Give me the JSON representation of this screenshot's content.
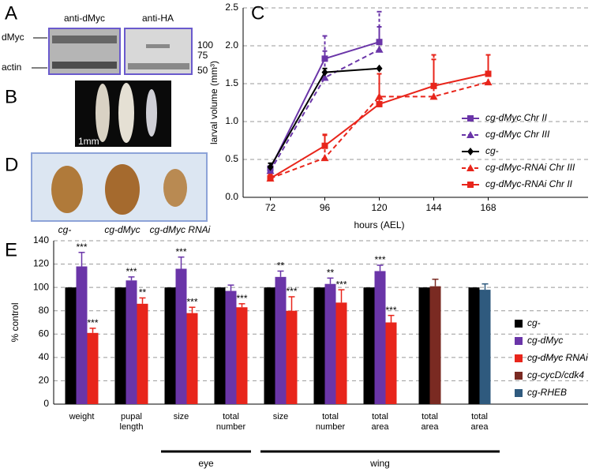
{
  "panels": {
    "A": {
      "letter": "A",
      "antibody_1": "anti-dMyc",
      "antibody_2": "anti-HA",
      "band_1": "dMyc",
      "band_2": "actin",
      "markers": [
        "100",
        "75",
        "50"
      ]
    },
    "B": {
      "letter": "B",
      "scale": "1mm"
    },
    "D": {
      "letter": "D",
      "labels": [
        "cg-",
        "cg-dMyc",
        "cg-dMyc RNAi"
      ]
    }
  },
  "chart_data": [
    {
      "type": "line",
      "panel": "C",
      "x_label": "hours (AEL)",
      "y_label": "larval volume (mm³)",
      "x": [
        72,
        96,
        120,
        144,
        168
      ],
      "xlim": [
        60,
        180
      ],
      "xticks": [
        72,
        96,
        120,
        144,
        168
      ],
      "ylim": [
        0,
        2.5
      ],
      "yticks": [
        {
          "value": 0,
          "label": "0.0"
        },
        0.5,
        {
          "value": 1,
          "label": "1.0"
        },
        1.5,
        {
          "value": 2,
          "label": "2.0"
        },
        2.5
      ],
      "grid": true,
      "legend": "lower right",
      "series": [
        {
          "name": "cg-dMyc Chr II",
          "color": "#6a35a8",
          "marker": "square",
          "dashed": false,
          "values": [
            0.38,
            1.83,
            2.05,
            null,
            null
          ],
          "errors": [
            0.03,
            0.1,
            0.2,
            null,
            null
          ]
        },
        {
          "name": "cg-dMyc Chr III",
          "color": "#6a35a8",
          "marker": "triangle",
          "dashed": true,
          "values": [
            0.35,
            1.58,
            1.95,
            null,
            null
          ],
          "errors": [
            0.03,
            0.55,
            0.5,
            null,
            null
          ]
        },
        {
          "name": "cg-",
          "color": "#000000",
          "marker": "diamond",
          "dashed": false,
          "values": [
            0.4,
            1.65,
            1.7,
            null,
            null
          ],
          "errors": [
            0.05,
            0.05,
            null,
            null,
            null
          ]
        },
        {
          "name": "cg-dMyc-RNAi Chr III",
          "color": "#e8251b",
          "marker": "triangle",
          "dashed": true,
          "values": [
            0.25,
            0.52,
            1.33,
            1.33,
            1.52
          ],
          "errors": [
            0.05,
            0.3,
            0.3,
            0.55,
            0.1
          ]
        },
        {
          "name": "cg-dMyc-RNAi Chr II",
          "color": "#e8251b",
          "marker": "square",
          "dashed": false,
          "values": [
            0.25,
            0.68,
            1.23,
            1.47,
            1.63
          ],
          "errors": [
            0.05,
            0.15,
            0.4,
            0.35,
            0.25
          ]
        }
      ]
    },
    {
      "type": "bar",
      "panel": "E",
      "y_label": "% control",
      "categories": [
        "weight",
        "pupal\nlength",
        "size",
        "total\nnumber",
        "size",
        "total\nnumber",
        "total\narea",
        "total\narea",
        "total\narea"
      ],
      "x_groups": [
        "eye",
        "wing"
      ],
      "ylim": [
        0,
        140
      ],
      "yticks": [
        0,
        20,
        40,
        60,
        80,
        100,
        120,
        140
      ],
      "grid": true,
      "legend": "right",
      "series": [
        {
          "name": "cg-",
          "color": "#000000",
          "values": [
            100,
            100,
            100,
            100,
            100,
            100,
            100,
            100,
            100
          ]
        },
        {
          "name": "cg-dMyc",
          "color": "#6a35a8",
          "values": [
            118,
            106,
            116,
            97,
            109,
            103,
            114,
            null,
            null
          ],
          "errors": [
            12,
            3,
            10,
            5,
            5,
            5,
            5,
            null,
            null
          ],
          "stars": [
            "***",
            "***",
            "***",
            null,
            "**",
            "**",
            "***",
            null,
            null
          ]
        },
        {
          "name": "cg-dMyc RNAi",
          "color": "#e8251b",
          "values": [
            61,
            86,
            78,
            83,
            80,
            87,
            70,
            null,
            null
          ],
          "errors": [
            4,
            5,
            5,
            3,
            12,
            11,
            6,
            null,
            null
          ],
          "stars": [
            "***",
            "**",
            "***",
            "***",
            "***",
            "***",
            "***",
            null,
            null
          ]
        },
        {
          "name": "cg-cycD/cdk4",
          "color": "#7a2a22",
          "values": [
            null,
            null,
            null,
            null,
            null,
            null,
            null,
            101,
            null
          ],
          "errors": [
            null,
            null,
            null,
            null,
            null,
            null,
            null,
            6,
            null
          ]
        },
        {
          "name": "cg-RHEB",
          "color": "#2f5a7e",
          "values": [
            null,
            null,
            null,
            null,
            null,
            null,
            null,
            null,
            98
          ],
          "errors": [
            null,
            null,
            null,
            null,
            null,
            null,
            null,
            null,
            5
          ]
        }
      ]
    }
  ]
}
